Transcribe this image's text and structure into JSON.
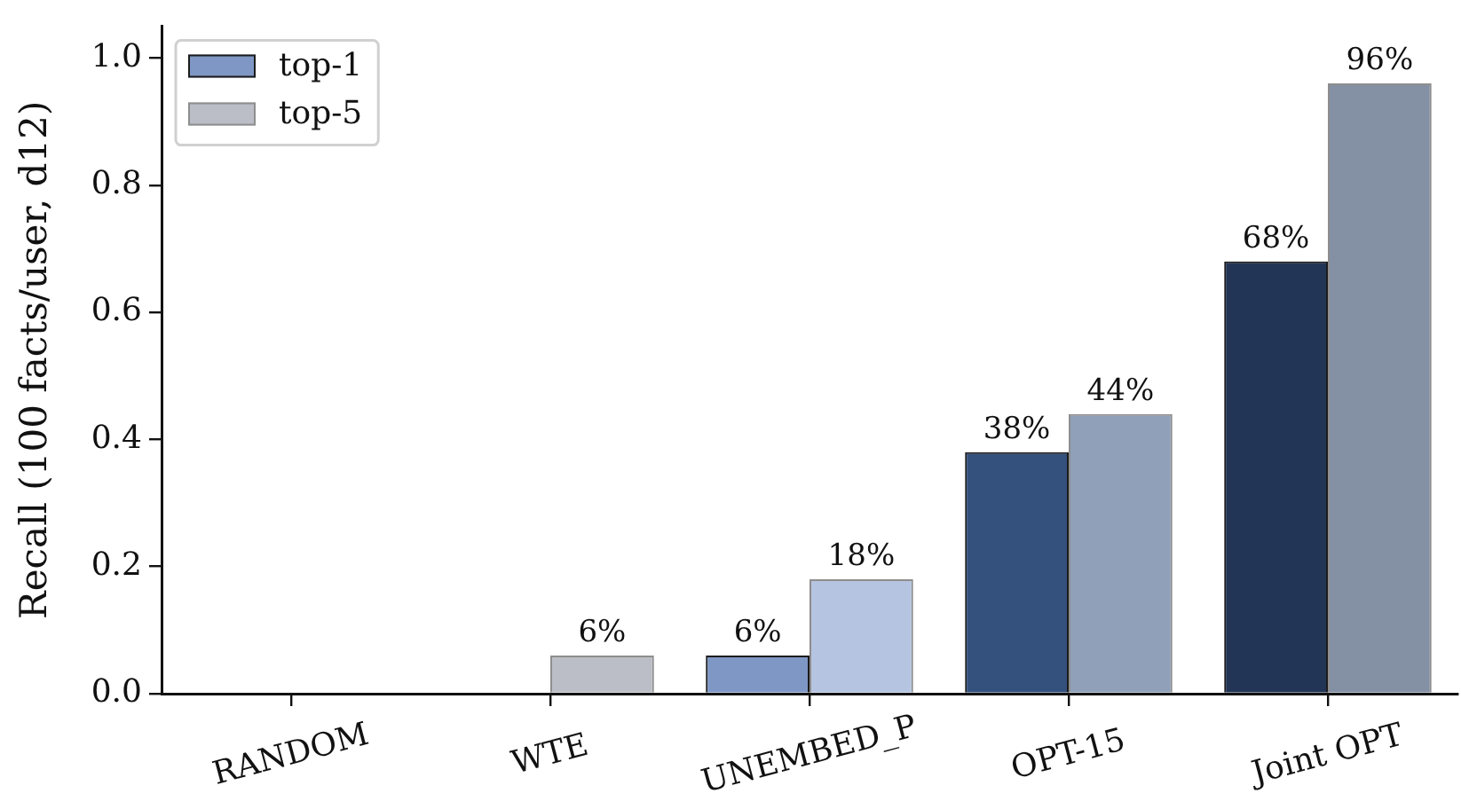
{
  "chart_data": {
    "type": "bar",
    "ylabel": "Recall (100 facts/user, d12)",
    "categories": [
      "RANDOM",
      "WTE",
      "UNEMBED_P",
      "OPT-15",
      "Joint OPT"
    ],
    "series": [
      {
        "name": "top-1",
        "color": "#7f97c4",
        "colors": [
          "#c2c5cf",
          "#c2c5cf",
          "#7f97c4",
          "#34507c",
          "#233556"
        ],
        "values": [
          0,
          0,
          0.06,
          0.38,
          0.68
        ],
        "value_labels": [
          null,
          null,
          "6%",
          "38%",
          "68%"
        ]
      },
      {
        "name": "top-5",
        "color": "#bbbec6",
        "colors": [
          "#dcdde2",
          "#bbbec6",
          "#b5c4e0",
          "#8fa0b8",
          "#8490a4"
        ],
        "values": [
          0,
          0.06,
          0.18,
          0.44,
          0.96
        ],
        "value_labels": [
          null,
          "6%",
          "18%",
          "44%",
          "96%"
        ]
      }
    ],
    "ylim": [
      0,
      1.05
    ],
    "yticks": [
      {
        "value": 0,
        "label": "0.0"
      },
      0.2,
      0.4,
      0.6,
      0.8,
      {
        "value": 1,
        "label": "1.0"
      }
    ],
    "grid": false,
    "legend": "top left"
  }
}
